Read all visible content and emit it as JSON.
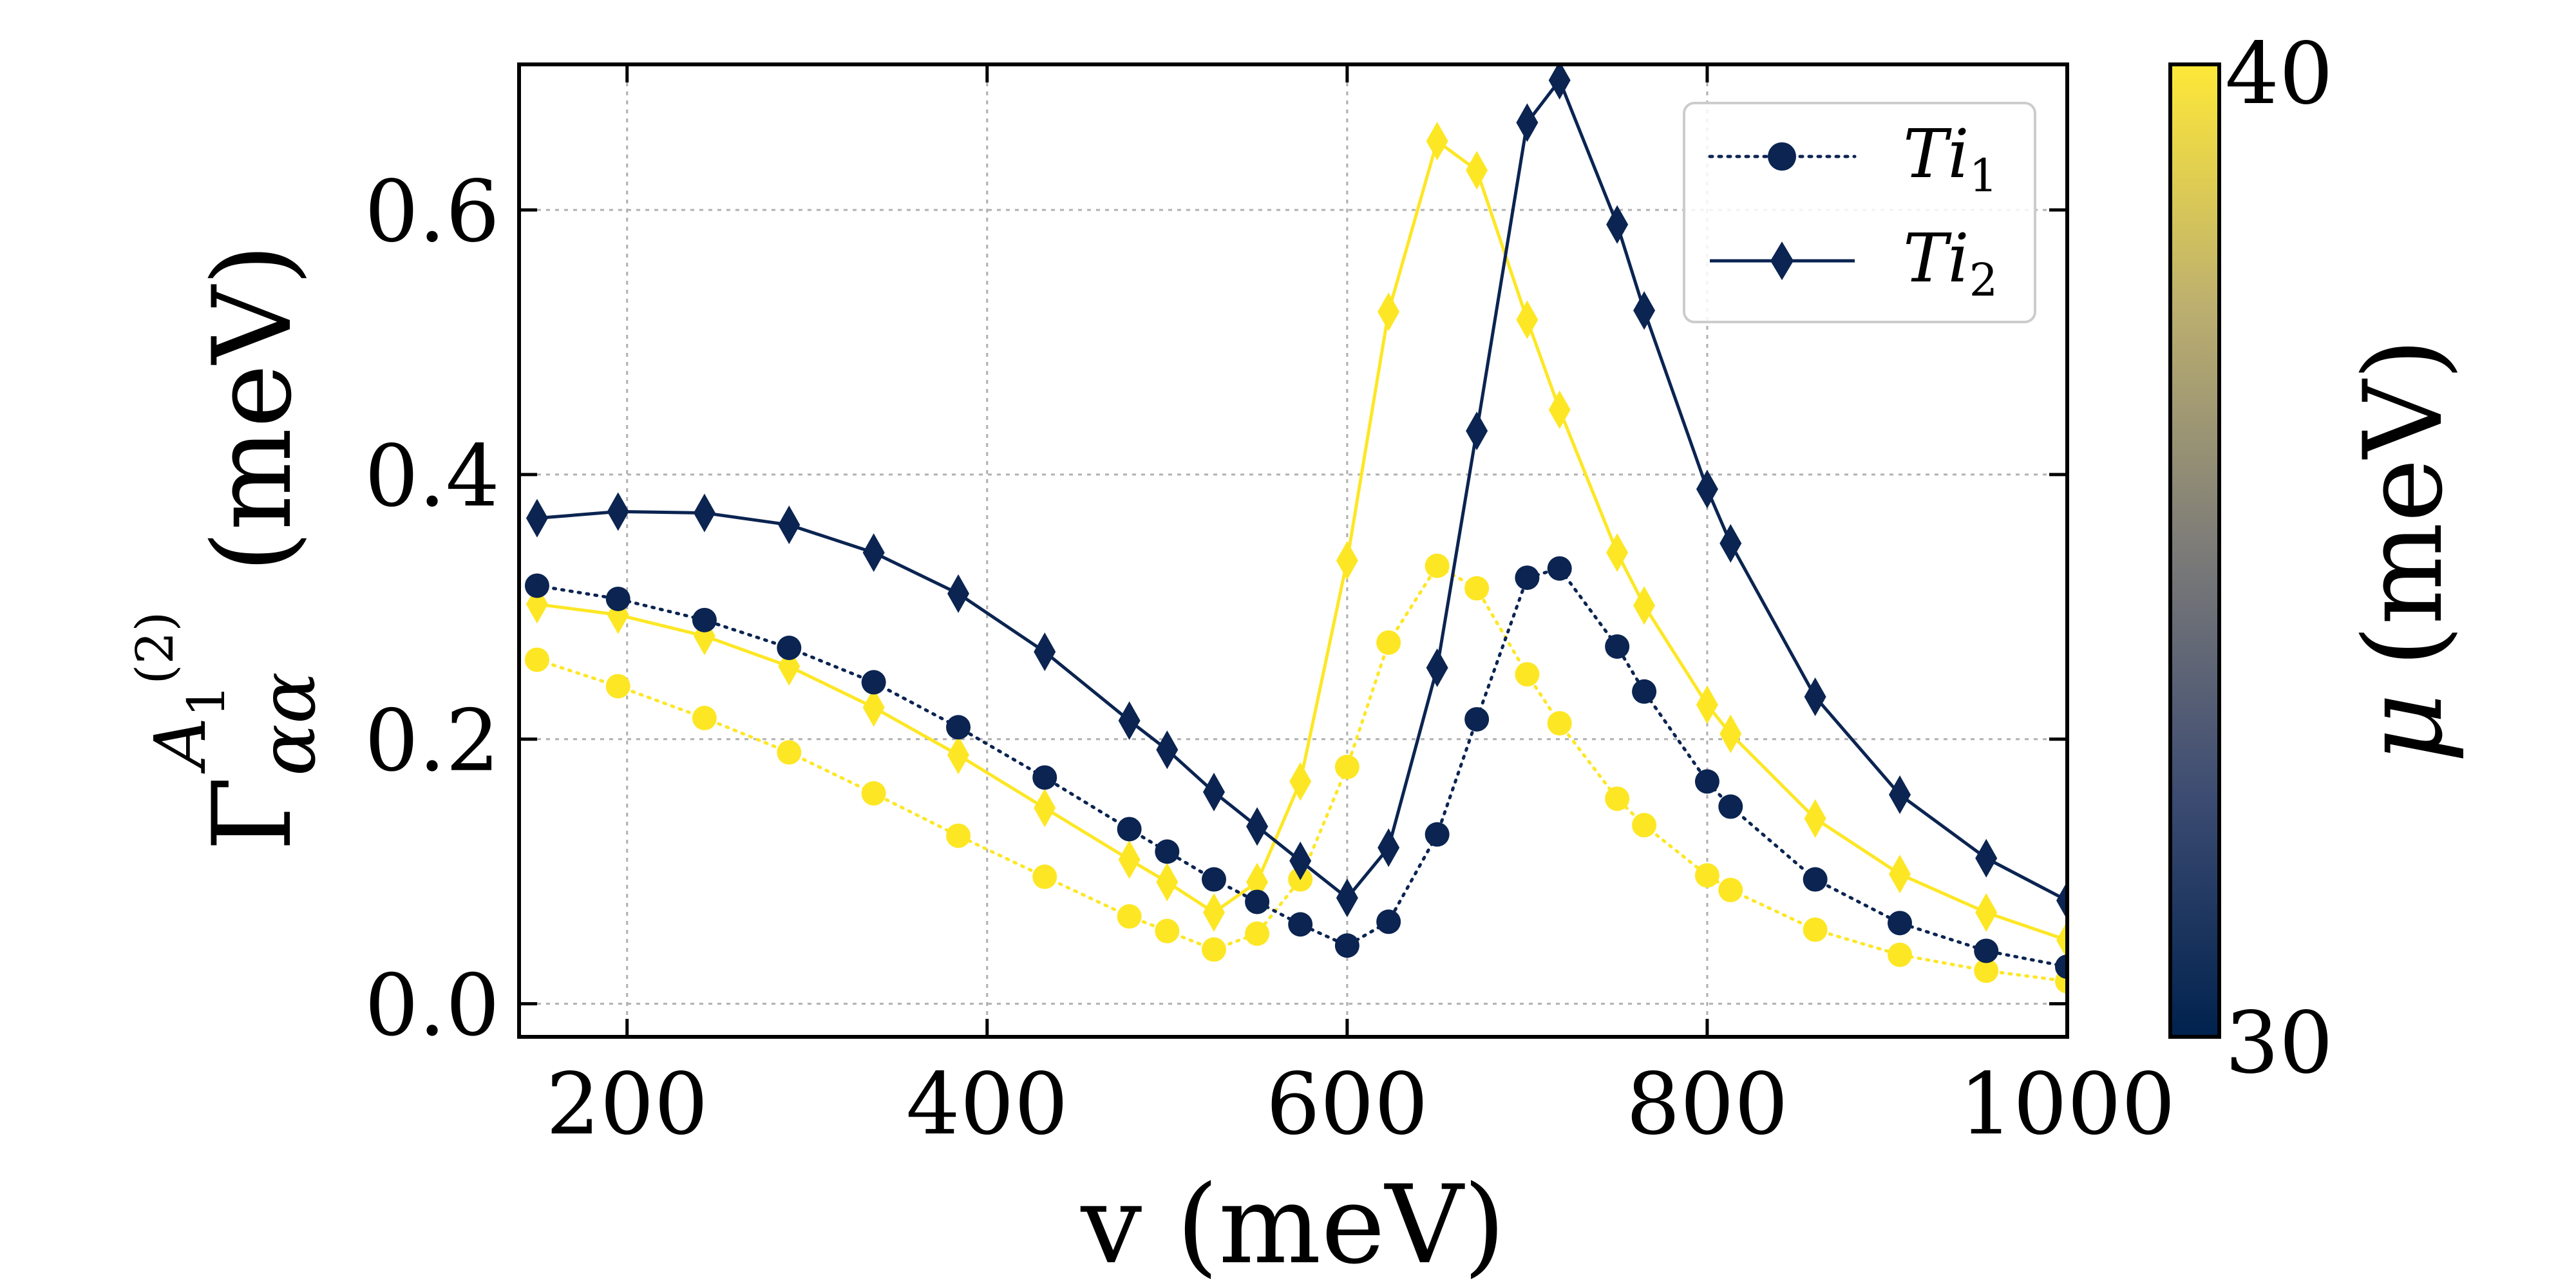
{
  "colors": {
    "dark": "#0b2451",
    "yellow": "#fde725",
    "axis": "#000000",
    "grid": "#b0b0b0"
  },
  "chart_data": {
    "type": "line",
    "xlabel": "v (meV)",
    "ylabel_main": "Γ",
    "ylabel_super": "A",
    "ylabel_super_sub": "1",
    "ylabel_super_paren": "(2)",
    "ylabel_sub": "αα",
    "ylabel_unit": "(meV)",
    "xlim": [
      140,
      1000
    ],
    "ylim": [
      -0.025,
      0.71
    ],
    "xticks": [
      200,
      400,
      600,
      800,
      1000
    ],
    "xtick_labels": [
      "200",
      "400",
      "600",
      "800",
      "1000"
    ],
    "yticks": [
      0.0,
      0.2,
      0.4,
      0.6
    ],
    "ytick_labels": [
      "0.0",
      "0.2",
      "0.4",
      "0.6"
    ],
    "grid": true,
    "legend": {
      "placement": "top-right",
      "entries": [
        {
          "base": "Ti",
          "sub": "1",
          "marker": "circle",
          "linestyle": "dotted"
        },
        {
          "base": "Ti",
          "sub": "2",
          "marker": "diamond",
          "linestyle": "solid"
        }
      ]
    },
    "colorbar": {
      "label_symbol": "μ",
      "label_unit": "(meV)",
      "min": 30,
      "max": 40,
      "min_label": "30",
      "max_label": "40",
      "colormap": "cividis"
    },
    "series": [
      {
        "name": "Ti1 μ=30",
        "mu": 30,
        "marker": "circle",
        "linestyle": "dotted",
        "x": [
          150,
          195,
          243,
          290,
          337,
          384,
          432,
          479,
          500,
          526,
          550,
          574,
          600,
          623,
          650,
          672,
          700,
          718,
          750,
          765,
          800,
          813,
          860,
          907,
          955,
          1000
        ],
        "y": [
          0.316,
          0.306,
          0.29,
          0.269,
          0.243,
          0.209,
          0.171,
          0.132,
          0.115,
          0.094,
          0.077,
          0.06,
          0.044,
          0.062,
          0.128,
          0.215,
          0.322,
          0.329,
          0.27,
          0.236,
          0.168,
          0.149,
          0.094,
          0.061,
          0.04,
          0.028
        ]
      },
      {
        "name": "Ti2 μ=30",
        "mu": 30,
        "marker": "diamond",
        "linestyle": "solid",
        "x": [
          150,
          195,
          243,
          290,
          337,
          384,
          432,
          479,
          500,
          526,
          550,
          574,
          600,
          623,
          650,
          672,
          700,
          718,
          750,
          765,
          800,
          813,
          860,
          907,
          955,
          1000
        ],
        "y": [
          0.367,
          0.372,
          0.371,
          0.362,
          0.341,
          0.31,
          0.266,
          0.214,
          0.192,
          0.16,
          0.134,
          0.108,
          0.08,
          0.118,
          0.254,
          0.433,
          0.666,
          0.698,
          0.589,
          0.524,
          0.389,
          0.348,
          0.232,
          0.158,
          0.11,
          0.078
        ]
      },
      {
        "name": "Ti1 μ=40",
        "mu": 40,
        "marker": "circle",
        "linestyle": "dotted",
        "x": [
          150,
          195,
          243,
          290,
          337,
          384,
          432,
          479,
          500,
          526,
          550,
          574,
          600,
          623,
          650,
          672,
          700,
          718,
          750,
          765,
          800,
          813,
          860,
          907,
          955,
          1000
        ],
        "y": [
          0.26,
          0.24,
          0.216,
          0.19,
          0.159,
          0.127,
          0.096,
          0.066,
          0.055,
          0.041,
          0.053,
          0.094,
          0.179,
          0.273,
          0.331,
          0.314,
          0.249,
          0.212,
          0.155,
          0.135,
          0.097,
          0.086,
          0.056,
          0.037,
          0.025,
          0.017
        ]
      },
      {
        "name": "Ti2 μ=40",
        "mu": 40,
        "marker": "diamond",
        "linestyle": "solid",
        "x": [
          150,
          195,
          243,
          290,
          337,
          384,
          432,
          479,
          500,
          526,
          550,
          574,
          600,
          623,
          650,
          672,
          700,
          718,
          750,
          765,
          800,
          813,
          860,
          907,
          955,
          1000
        ],
        "y": [
          0.302,
          0.294,
          0.278,
          0.255,
          0.224,
          0.188,
          0.148,
          0.109,
          0.092,
          0.069,
          0.092,
          0.168,
          0.335,
          0.523,
          0.652,
          0.63,
          0.517,
          0.449,
          0.341,
          0.301,
          0.226,
          0.204,
          0.14,
          0.098,
          0.069,
          0.048
        ]
      }
    ]
  }
}
